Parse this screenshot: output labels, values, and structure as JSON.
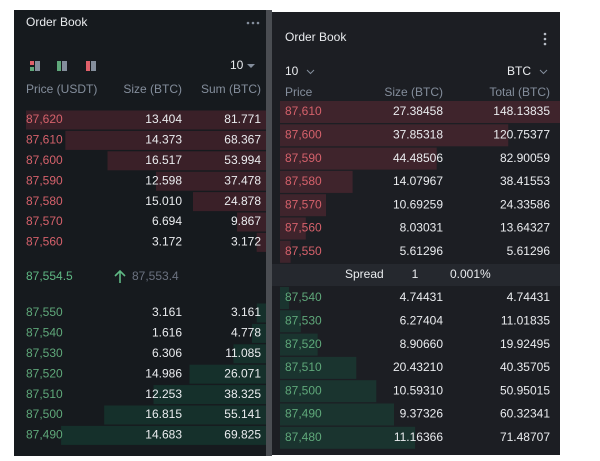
{
  "left": {
    "title": "Order Book",
    "depth": "10",
    "headers": [
      "Price (USDT)",
      "Size (BTC)",
      "Sum (BTC)"
    ],
    "asks": [
      [
        "87,620",
        "13.404",
        "81.771"
      ],
      [
        "87,610",
        "14.373",
        "68.367"
      ],
      [
        "87,600",
        "16.517",
        "53.994"
      ],
      [
        "87,590",
        "12.598",
        "37.478"
      ],
      [
        "87,580",
        "15.010",
        "24.878"
      ],
      [
        "87,570",
        "6.694",
        "9.867"
      ],
      [
        "87,560",
        "3.172",
        "3.172"
      ]
    ],
    "last_price": "87,554.5",
    "mark_price": "87,553.4",
    "bids": [
      [
        "87,550",
        "3.161",
        "3.161"
      ],
      [
        "87,540",
        "1.616",
        "4.778"
      ],
      [
        "87,530",
        "6.306",
        "11.085"
      ],
      [
        "87,520",
        "14.986",
        "26.071"
      ],
      [
        "87,510",
        "12.253",
        "38.325"
      ],
      [
        "87,500",
        "16.815",
        "55.141"
      ],
      [
        "87,490",
        "14.683",
        "69.825"
      ]
    ]
  },
  "right": {
    "title": "Order Book",
    "depth": "10",
    "unit": "BTC",
    "headers": [
      "Price",
      "Size (BTC)",
      "Total (BTC)"
    ],
    "asks": [
      [
        "87,610",
        "27.38458",
        "148.13835"
      ],
      [
        "87,600",
        "37.85318",
        "120.75377"
      ],
      [
        "87,590",
        "44.48506",
        "82.90059"
      ],
      [
        "87,580",
        "14.07967",
        "38.41553"
      ],
      [
        "87,570",
        "10.69259",
        "24.33586"
      ],
      [
        "87,560",
        "8.03031",
        "13.64327"
      ],
      [
        "87,550",
        "5.61296",
        "5.61296"
      ]
    ],
    "spread": {
      "label": "Spread",
      "value": "1",
      "percent": "0.001%"
    },
    "bids": [
      [
        "87,540",
        "4.74431",
        "4.74431"
      ],
      [
        "87,530",
        "6.27404",
        "11.01835"
      ],
      [
        "87,520",
        "8.90660",
        "19.92495"
      ],
      [
        "87,510",
        "20.43210",
        "40.35705"
      ],
      [
        "87,500",
        "10.59310",
        "50.95015"
      ],
      [
        "87,490",
        "9.37326",
        "60.32341"
      ],
      [
        "87,480",
        "11.16366",
        "71.48707"
      ]
    ]
  }
}
